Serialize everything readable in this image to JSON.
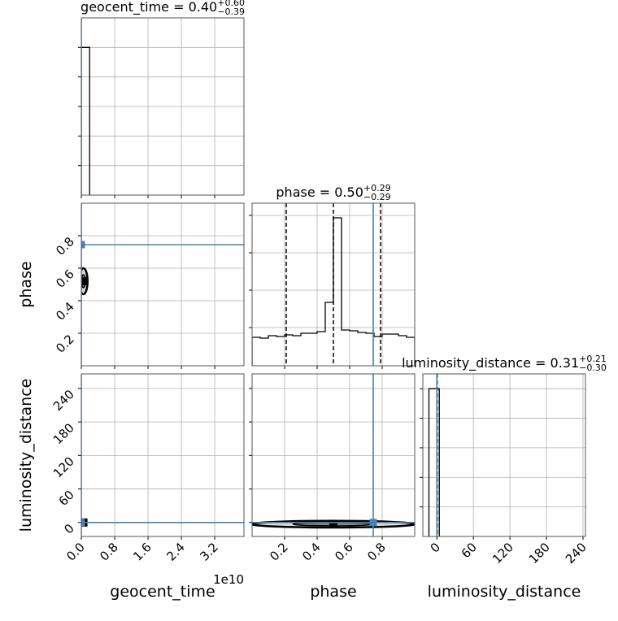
{
  "chart_data": [
    {
      "type": "histogram",
      "title": "geocent_time = 0.40",
      "title_sup": "+0.60",
      "title_sub": "−0.39",
      "bins": [
        0,
        0.2
      ],
      "counts": [
        1
      ],
      "color": "#000000",
      "truth": 0,
      "truth_color": "#4682b4",
      "xlim": [
        0,
        3.9
      ],
      "ylim": [
        0,
        1.2
      ],
      "xticks": [
        0,
        0.8,
        1.6,
        2.4,
        3.2
      ],
      "yticks": [
        0.2,
        0.4,
        0.6,
        0.8,
        1.0
      ],
      "x_tick_labels": false,
      "y_tick_labels": false,
      "grid": true
    },
    {
      "type": "contour",
      "contour_center": [
        0.05,
        0.52
      ],
      "contour_width": [
        0.2,
        0.16
      ],
      "color": "#000000",
      "truth": [
        0,
        0.745
      ],
      "truth_color": "#4682b4",
      "xlim": [
        0,
        3.9
      ],
      "ylim": [
        0,
        1
      ],
      "xticks": [
        0,
        0.8,
        1.6,
        2.4,
        3.2
      ],
      "yticks": [
        0.2,
        0.4,
        0.6,
        0.8
      ],
      "x_tick_labels": false,
      "y_tick_labels": true,
      "ylabel": "phase",
      "grid": true
    },
    {
      "type": "histogram",
      "title": "phase = 0.50",
      "title_sup": "+0.29",
      "title_sub": "−0.29",
      "bins": [
        0,
        0.05,
        0.1,
        0.15,
        0.2,
        0.25,
        0.3,
        0.35,
        0.4,
        0.45,
        0.5,
        0.55,
        0.6,
        0.65,
        0.7,
        0.75,
        0.8,
        0.85,
        0.9,
        0.95,
        1.0
      ],
      "counts": [
        35,
        34,
        37,
        36,
        38,
        37,
        40,
        40,
        42,
        78,
        182,
        44,
        43,
        41,
        40,
        36,
        39,
        39,
        37,
        35
      ],
      "color": "#000000",
      "quantiles": [
        0.21,
        0.5,
        0.79
      ],
      "truth": 0.745,
      "truth_color": "#4682b4",
      "xlim": [
        0,
        1
      ],
      "ylim": [
        0,
        200
      ],
      "xticks": [
        0.2,
        0.4,
        0.6,
        0.8
      ],
      "yticks": [
        47,
        93,
        139,
        185
      ],
      "x_tick_labels": false,
      "y_tick_labels": false,
      "grid": true
    },
    {
      "type": "contour",
      "contour_center": [
        0.05,
        0
      ],
      "contour_width": [
        0.12,
        6
      ],
      "color": "#000000",
      "truth": [
        0,
        0
      ],
      "truth_color": "#4682b4",
      "xlim": [
        0,
        3.9
      ],
      "ylim": [
        -25,
        266
      ],
      "xticks": [
        {
          "value": 0,
          "label": "0.0"
        },
        0.8,
        1.6,
        2.4,
        3.2
      ],
      "yticks": [
        0,
        60,
        120,
        180,
        240
      ],
      "x_tick_labels": true,
      "y_tick_labels": true,
      "xlabel": "geocent_time",
      "ylabel": "luminosity_distance",
      "offset_text": "1e10",
      "grid": true
    },
    {
      "type": "contour",
      "contour_center": [
        0.5,
        -3
      ],
      "contour_width": [
        1.0,
        12
      ],
      "color": "#000000",
      "truth": [
        0.745,
        0
      ],
      "truth_color": "#4682b4",
      "xlim": [
        0,
        1
      ],
      "ylim": [
        -25,
        266
      ],
      "xticks": [
        0.2,
        0.4,
        0.6,
        0.8
      ],
      "yticks": [
        0,
        60,
        120,
        180,
        240
      ],
      "x_tick_labels": true,
      "y_tick_labels": false,
      "xlabel": "phase",
      "grid": true
    },
    {
      "type": "histogram",
      "title": "luminosity_distance = 0.31",
      "title_sup": "+0.21",
      "title_sub": "−0.30",
      "bins": [
        -13,
        4
      ],
      "counts": [
        1
      ],
      "color": "#000000",
      "quantiles": [
        0.01,
        0.31,
        0.52
      ],
      "truth": 0,
      "truth_color": "#4682b4",
      "xlim": [
        -23,
        244
      ],
      "ylim": [
        0,
        1.1
      ],
      "xticks": [
        0,
        60,
        120,
        180,
        240
      ],
      "yticks": [
        0.2,
        0.4,
        0.6,
        0.8,
        1.0
      ],
      "x_tick_labels": true,
      "y_tick_labels": false,
      "xlabel": "luminosity_distance",
      "grid": true
    }
  ]
}
